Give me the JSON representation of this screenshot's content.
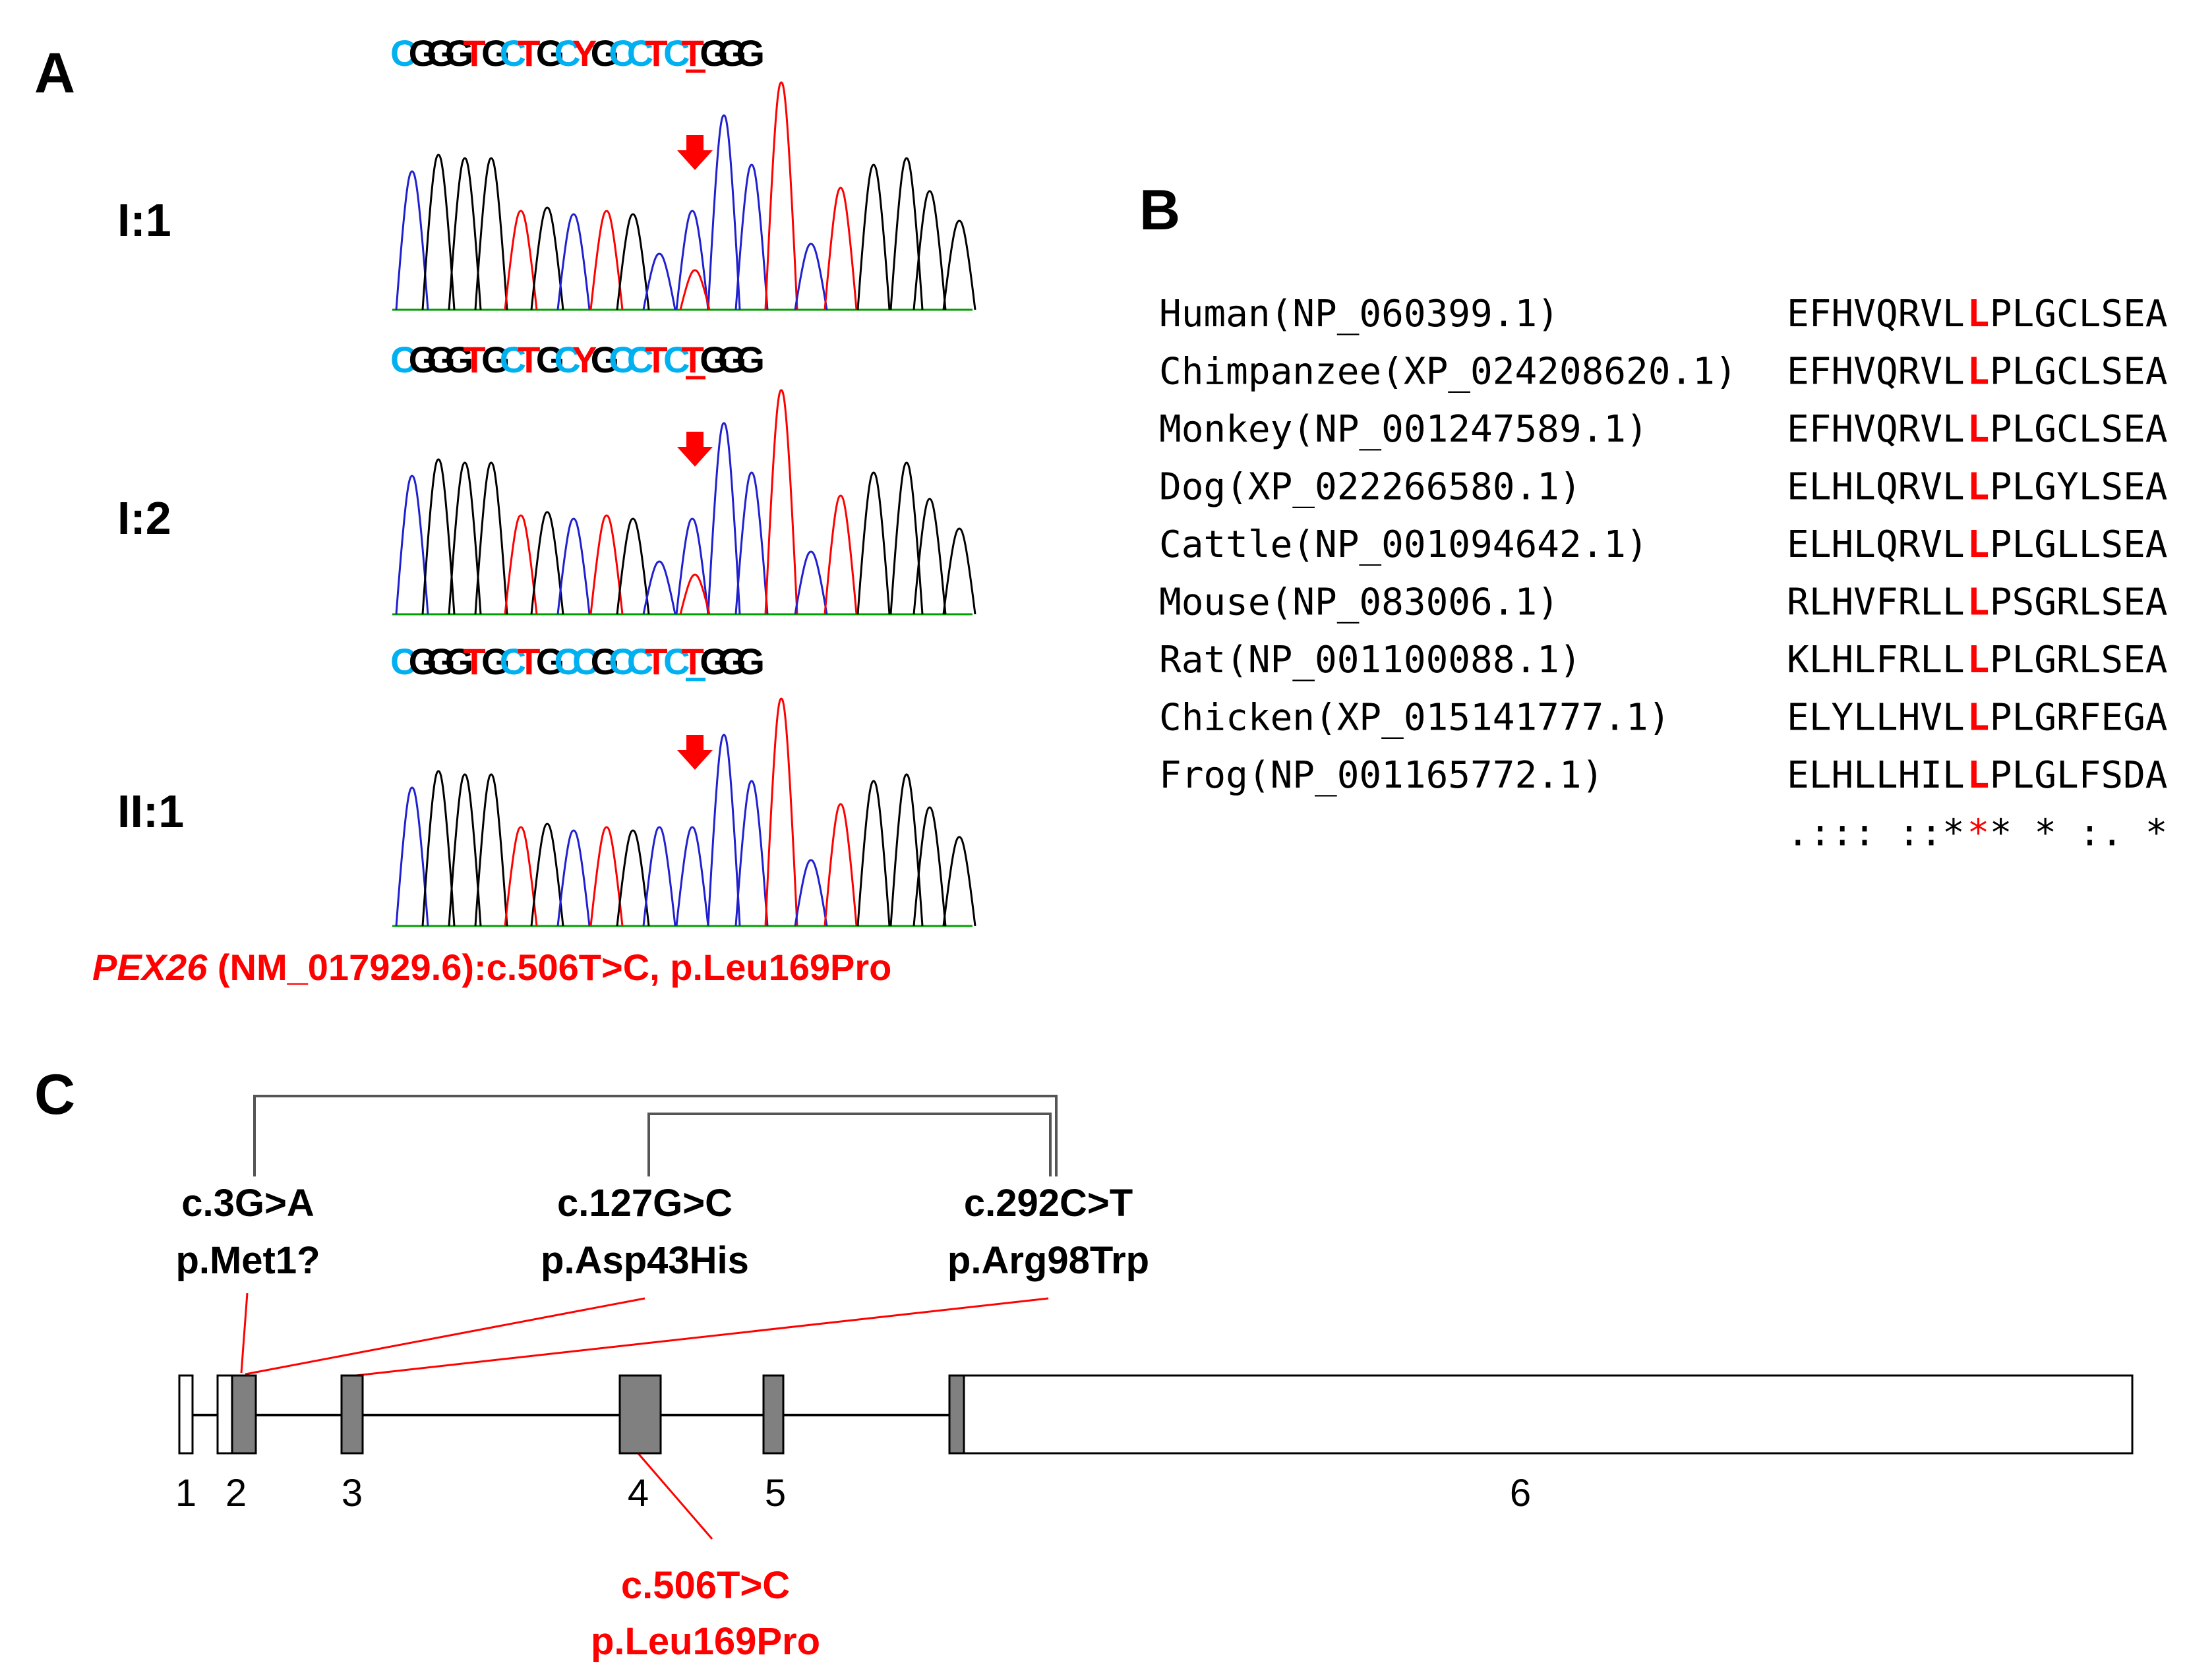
{
  "panels": {
    "A": "A",
    "B": "B",
    "C": "C"
  },
  "colors": {
    "red": "#ff0000",
    "cyan": "#00b0f0",
    "black": "#000000",
    "blue": "#2020d0",
    "green": "#00a000",
    "exon_fill": "#808080"
  },
  "panel_a": {
    "sequences": [
      {
        "id": "I:1",
        "label": "I:1",
        "bases": "CGGGTGCTGCYGCCTCTGGG",
        "colors": "CKKKRKCRKCRKCCRCRKKK",
        "marked_index": 10
      },
      {
        "id": "I:2",
        "label": "I:2",
        "bases": "CGGGTGCTGCYGCCTCTGGG",
        "colors": "CKKKRKCRKCRKCCRCRKKK",
        "marked_index": 10
      },
      {
        "id": "II:1",
        "label": "II:1",
        "bases": "CGGGTGCTGCCGCCTCTGGG",
        "colors": "CKKKRKCRKCCKCCRCRKKK",
        "marked_index": 10
      }
    ],
    "variant_gene": "PEX26",
    "variant_rest": " (NM_017929.6):c.506T>C, p.Leu169Pro"
  },
  "panel_b": {
    "rows": [
      {
        "species": "Human(NP_060399.1)",
        "pre": "EFHVQRVL",
        "res": "L",
        "post": "PLGCLSEA"
      },
      {
        "species": "Chimpanzee(XP_024208620.1)",
        "pre": "EFHVQRVL",
        "res": "L",
        "post": "PLGCLSEA"
      },
      {
        "species": "Monkey(NP_001247589.1)",
        "pre": "EFHVQRVL",
        "res": "L",
        "post": "PLGCLSEA"
      },
      {
        "species": "Dog(XP_022266580.1)",
        "pre": "ELHLQRVL",
        "res": "L",
        "post": "PLGYLSEA"
      },
      {
        "species": "Cattle(NP_001094642.1)",
        "pre": "ELHLQRVL",
        "res": "L",
        "post": "PLGLLSEA"
      },
      {
        "species": "Mouse(NP_083006.1)",
        "pre": "RLHVFRLL",
        "res": "L",
        "post": "PSGRLSEA"
      },
      {
        "species": "Rat(NP_001100088.1)",
        "pre": "KLHLFRLL",
        "res": "L",
        "post": "PLGRLSEA"
      },
      {
        "species": "Chicken(XP_015141777.1)",
        "pre": "ELYLLHVL",
        "res": "L",
        "post": "PLGRFEGA"
      },
      {
        "species": "Frog(NP_001165772.1)",
        "pre": "ELHLLHIL",
        "res": "L",
        "post": "PLGLFSDA"
      }
    ],
    "consensus_pre": ".::: ::*",
    "consensus_res": "*",
    "consensus_post": "* * :. *"
  },
  "panel_c": {
    "variants_top": [
      {
        "id": "v1",
        "line1": "c.3G>A",
        "line2": "p.Met1?"
      },
      {
        "id": "v2",
        "line1": "c.127G>C",
        "line2": "p.Asp43His"
      },
      {
        "id": "v3",
        "line1": "c.292C>T",
        "line2": "p.Arg98Trp"
      }
    ],
    "exon_labels": [
      "1",
      "2",
      "3",
      "4",
      "5",
      "6"
    ],
    "variant_bottom": {
      "line1": "c.506T>C",
      "line2": "p.Leu169Pro"
    }
  }
}
